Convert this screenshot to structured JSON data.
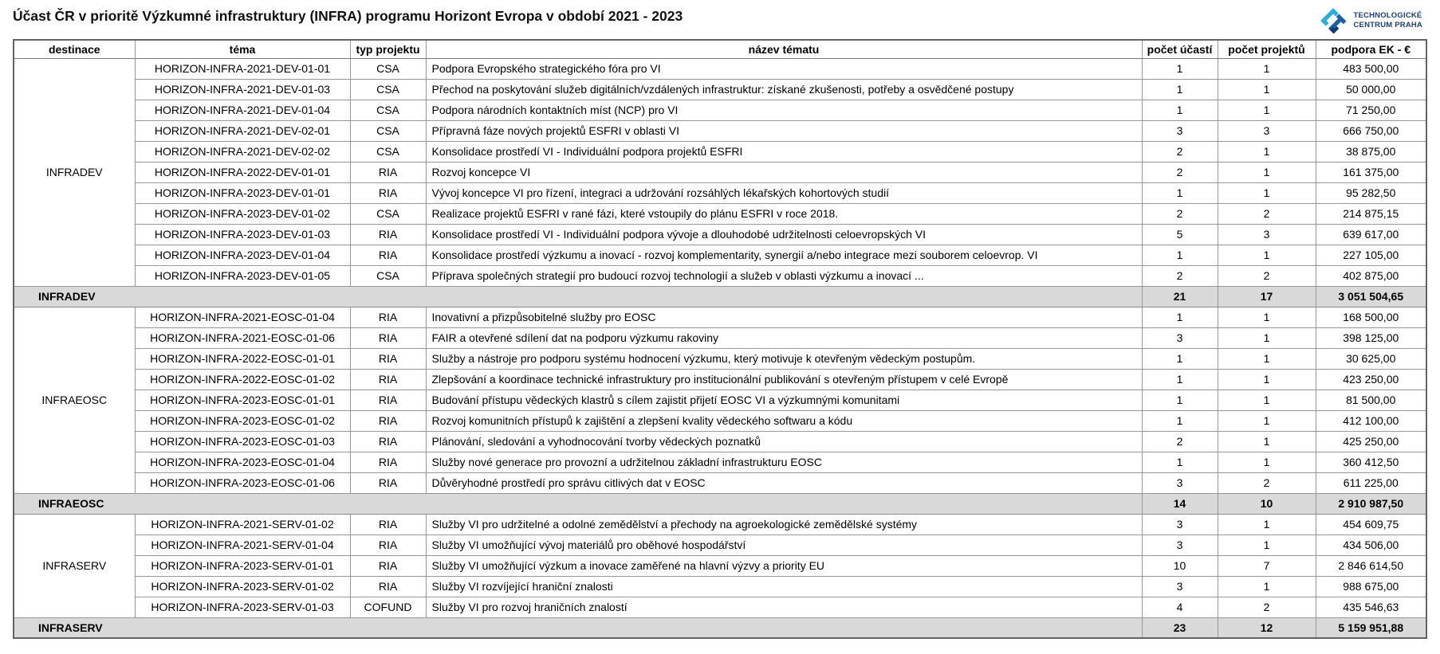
{
  "title": "Účast ČR v prioritě Výzkumné infrastruktury  (INFRA) programu Horizont Evropa v období 2021 - 2023",
  "logo": {
    "line1": "TECHNOLOGICKÉ",
    "line2": "CENTRUM PRAHA"
  },
  "colors": {
    "summary_row_bg": "#d9d9d9",
    "grid_line": "#979797",
    "logo_light_blue": "#2aace2",
    "logo_dark_blue": "#1b5fa8",
    "logo_navy_text": "#1c3f72"
  },
  "table": {
    "headers": [
      "destinace",
      "téma",
      "typ projektu",
      "název tématu",
      "počet účastí",
      "počet projektů",
      "podpora EK - €"
    ],
    "sections": [
      {
        "destination": "INFRADEV",
        "rows": [
          {
            "tema": "HORIZON-INFRA-2021-DEV-01-01",
            "typ": "CSA",
            "nazev": "Podpora Evropského strategického fóra pro VI",
            "ucasti": "1",
            "projekty": "1",
            "podpora": "483 500,00"
          },
          {
            "tema": "HORIZON-INFRA-2021-DEV-01-03",
            "typ": "CSA",
            "nazev": "Přechod na poskytování služeb digitálních/vzdálených infrastruktur: získané zkušenosti, potřeby a osvědčené postupy",
            "ucasti": "1",
            "projekty": "1",
            "podpora": "50 000,00"
          },
          {
            "tema": "HORIZON-INFRA-2021-DEV-01-04",
            "typ": "CSA",
            "nazev": "Podpora národních kontaktních míst (NCP) pro VI",
            "ucasti": "1",
            "projekty": "1",
            "podpora": "71 250,00"
          },
          {
            "tema": "HORIZON-INFRA-2021-DEV-02-01",
            "typ": "CSA",
            "nazev": "Přípravná fáze nových projektů ESFRI v oblasti VI",
            "ucasti": "3",
            "projekty": "3",
            "podpora": "666 750,00"
          },
          {
            "tema": "HORIZON-INFRA-2021-DEV-02-02",
            "typ": "CSA",
            "nazev": "Konsolidace prostředí VI - Individuální podpora projektů ESFRI",
            "ucasti": "2",
            "projekty": "1",
            "podpora": "38 875,00"
          },
          {
            "tema": "HORIZON-INFRA-2022-DEV-01-01",
            "typ": "RIA",
            "nazev": "Rozvoj koncepce VI",
            "ucasti": "2",
            "projekty": "1",
            "podpora": "161 375,00"
          },
          {
            "tema": "HORIZON-INFRA-2023-DEV-01-01",
            "typ": "RIA",
            "nazev": "Vývoj koncepce VI pro řízení, integraci a udržování rozsáhlých lékařských kohortových studií",
            "ucasti": "1",
            "projekty": "1",
            "podpora": "95 282,50"
          },
          {
            "tema": "HORIZON-INFRA-2023-DEV-01-02",
            "typ": "CSA",
            "nazev": "Realizace projektů ESFRI v rané fázi, které vstoupily do plánu ESFRI v roce 2018.",
            "ucasti": "2",
            "projekty": "2",
            "podpora": "214 875,15"
          },
          {
            "tema": "HORIZON-INFRA-2023-DEV-01-03",
            "typ": "RIA",
            "nazev": "Konsolidace prostředí VI - Individuální podpora vývoje a dlouhodobé udržitelnosti celoevropských VI",
            "ucasti": "5",
            "projekty": "3",
            "podpora": "639 617,00"
          },
          {
            "tema": "HORIZON-INFRA-2023-DEV-01-04",
            "typ": "RIA",
            "nazev": "Konsolidace prostředí výzkumu a inovací - rozvoj komplementarity, synergií a/nebo integrace mezi souborem celoevrop. VI",
            "ucasti": "1",
            "projekty": "1",
            "podpora": "227 105,00"
          },
          {
            "tema": "HORIZON-INFRA-2023-DEV-01-05",
            "typ": "CSA",
            "nazev": "Příprava společných strategií pro budoucí rozvoj technologií a služeb v oblasti výzkumu a inovací ...",
            "ucasti": "2",
            "projekty": "2",
            "podpora": "402 875,00"
          }
        ],
        "summary": {
          "label": "INFRADEV",
          "ucasti": "21",
          "projekty": "17",
          "podpora": "3 051 504,65"
        }
      },
      {
        "destination": "INFRAEOSC",
        "rows": [
          {
            "tema": "HORIZON-INFRA-2021-EOSC-01-04",
            "typ": "RIA",
            "nazev": "Inovativní a přizpůsobitelné služby pro EOSC",
            "ucasti": "1",
            "projekty": "1",
            "podpora": "168 500,00"
          },
          {
            "tema": "HORIZON-INFRA-2021-EOSC-01-06",
            "typ": "RIA",
            "nazev": "FAIR a otevřené sdílení dat na podporu výzkumu rakoviny",
            "ucasti": "3",
            "projekty": "1",
            "podpora": "398 125,00"
          },
          {
            "tema": "HORIZON-INFRA-2022-EOSC-01-01",
            "typ": "RIA",
            "nazev": "Služby a nástroje pro podporu systému hodnocení výzkumu, který motivuje k otevřeným vědeckým postupům.",
            "ucasti": "1",
            "projekty": "1",
            "podpora": "30 625,00"
          },
          {
            "tema": "HORIZON-INFRA-2022-EOSC-01-02",
            "typ": "RIA",
            "nazev": "Zlepšování a koordinace technické infrastruktury pro institucionální publikování s otevřeným přístupem v celé Evropě",
            "ucasti": "1",
            "projekty": "1",
            "podpora": "423 250,00"
          },
          {
            "tema": "HORIZON-INFRA-2023-EOSC-01-01",
            "typ": "RIA",
            "nazev": "Budování přístupu vědeckých klastrů s cílem zajistit přijetí EOSC VI a výzkumnými komunitami",
            "ucasti": "1",
            "projekty": "1",
            "podpora": "81 500,00"
          },
          {
            "tema": "HORIZON-INFRA-2023-EOSC-01-02",
            "typ": "RIA",
            "nazev": "Rozvoj komunitních přístupů k zajištění a zlepšení kvality vědeckého softwaru a kódu",
            "ucasti": "1",
            "projekty": "1",
            "podpora": "412 100,00"
          },
          {
            "tema": "HORIZON-INFRA-2023-EOSC-01-03",
            "typ": "RIA",
            "nazev": "Plánování, sledování a vyhodnocování tvorby vědeckých poznatků",
            "ucasti": "2",
            "projekty": "1",
            "podpora": "425 250,00"
          },
          {
            "tema": "HORIZON-INFRA-2023-EOSC-01-04",
            "typ": "RIA",
            "nazev": "Služby nové generace pro provozní a udržitelnou základní infrastrukturu EOSC",
            "ucasti": "1",
            "projekty": "1",
            "podpora": "360 412,50"
          },
          {
            "tema": "HORIZON-INFRA-2023-EOSC-01-06",
            "typ": "RIA",
            "nazev": "Důvěryhodné prostředí pro správu citlivých dat v EOSC",
            "ucasti": "3",
            "projekty": "2",
            "podpora": "611 225,00"
          }
        ],
        "summary": {
          "label": "INFRAEOSC",
          "ucasti": "14",
          "projekty": "10",
          "podpora": "2 910 987,50"
        }
      },
      {
        "destination": "INFRASERV",
        "rows": [
          {
            "tema": "HORIZON-INFRA-2021-SERV-01-02",
            "typ": "RIA",
            "nazev": "Služby VI pro udržitelné a odolné zemědělství a přechody na agroekologické zemědělské systémy",
            "ucasti": "3",
            "projekty": "1",
            "podpora": "454 609,75"
          },
          {
            "tema": "HORIZON-INFRA-2021-SERV-01-04",
            "typ": "RIA",
            "nazev": "Služby VI umožňující vývoj materiálů pro oběhové hospodářství",
            "ucasti": "3",
            "projekty": "1",
            "podpora": "434 506,00"
          },
          {
            "tema": "HORIZON-INFRA-2023-SERV-01-01",
            "typ": "RIA",
            "nazev": "Služby VI umožňující výzkum a inovace zaměřené na hlavní výzvy a priority EU",
            "ucasti": "10",
            "projekty": "7",
            "podpora": "2 846 614,50"
          },
          {
            "tema": "HORIZON-INFRA-2023-SERV-01-02",
            "typ": "RIA",
            "nazev": "Služby VI rozvíjející hraniční znalosti",
            "ucasti": "3",
            "projekty": "1",
            "podpora": "988 675,00"
          },
          {
            "tema": "HORIZON-INFRA-2023-SERV-01-03",
            "typ": "COFUND",
            "nazev": "Služby VI pro rozvoj hraničních znalostí",
            "ucasti": "4",
            "projekty": "2",
            "podpora": "435 546,63"
          }
        ],
        "summary": {
          "label": "INFRASERV",
          "ucasti": "23",
          "projekty": "12",
          "podpora": "5 159 951,88"
        }
      }
    ]
  }
}
